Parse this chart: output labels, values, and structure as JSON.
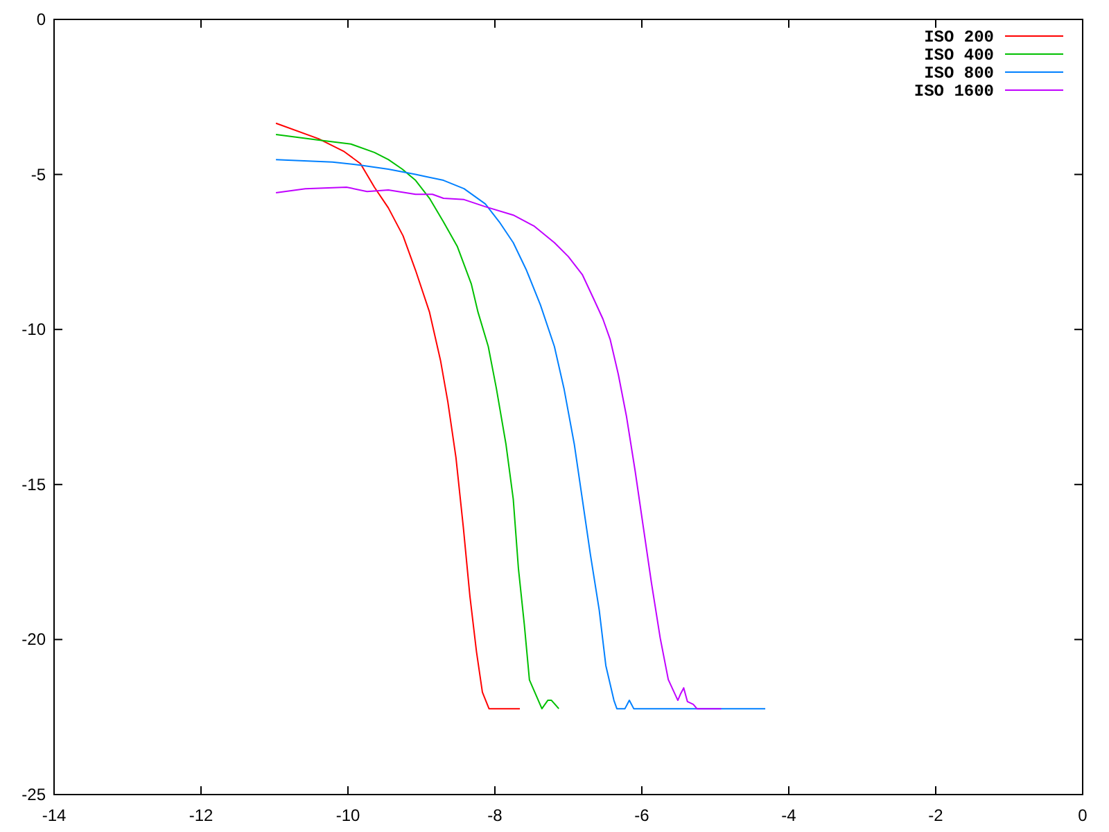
{
  "chart_data": {
    "type": "line",
    "xlim": [
      -14,
      0
    ],
    "ylim": [
      -25,
      0
    ],
    "xticks": [
      -14,
      -12,
      -10,
      -8,
      -6,
      -4,
      -2,
      0
    ],
    "yticks": [
      -25,
      -20,
      -15,
      -10,
      -5,
      0
    ],
    "legend": "top right",
    "grid": false,
    "series": [
      {
        "name": "ISO 200",
        "color": "#ff0000",
        "x": [
          -10.98,
          -10.4,
          -10.06,
          -9.83,
          -9.64,
          -9.45,
          -9.25,
          -9.08,
          -8.89,
          -8.74,
          -8.64,
          -8.53,
          -8.43,
          -8.34,
          -8.25,
          -8.17,
          -8.08,
          -7.66
        ],
        "values": [
          -3.35,
          -3.85,
          -4.25,
          -4.65,
          -5.41,
          -6.08,
          -6.98,
          -8.09,
          -9.44,
          -11.0,
          -12.34,
          -14.13,
          -16.37,
          -18.6,
          -20.4,
          -21.7,
          -22.23,
          -22.23
        ]
      },
      {
        "name": "ISO 400",
        "color": "#00c000",
        "x": [
          -10.98,
          -10.4,
          -9.96,
          -9.64,
          -9.45,
          -9.26,
          -9.08,
          -8.89,
          -8.7,
          -8.51,
          -8.32,
          -8.23,
          -8.09,
          -7.98,
          -7.85,
          -7.75,
          -7.68,
          -7.6,
          -7.53,
          -7.36,
          -7.28,
          -7.23,
          -7.13
        ],
        "values": [
          -3.71,
          -3.89,
          -4.02,
          -4.29,
          -4.52,
          -4.83,
          -5.19,
          -5.77,
          -6.53,
          -7.33,
          -8.54,
          -9.44,
          -10.55,
          -11.9,
          -13.69,
          -15.47,
          -17.7,
          -19.5,
          -21.3,
          -22.23,
          -21.96,
          -21.96,
          -22.23
        ]
      },
      {
        "name": "ISO 800",
        "color": "#0080ff",
        "x": [
          -10.98,
          -10.21,
          -9.83,
          -9.45,
          -9.08,
          -8.7,
          -8.42,
          -8.13,
          -7.94,
          -7.75,
          -7.57,
          -7.38,
          -7.19,
          -7.06,
          -6.92,
          -6.81,
          -6.7,
          -6.58,
          -6.49,
          -6.38,
          -6.34,
          -6.23,
          -6.17,
          -6.11,
          -4.32
        ],
        "values": [
          -4.52,
          -4.6,
          -4.7,
          -4.83,
          -5.0,
          -5.19,
          -5.46,
          -5.95,
          -6.53,
          -7.2,
          -8.09,
          -9.21,
          -10.55,
          -11.9,
          -13.69,
          -15.47,
          -17.26,
          -19.05,
          -20.84,
          -21.96,
          -22.23,
          -22.23,
          -21.96,
          -22.23,
          -22.23
        ]
      },
      {
        "name": "ISO 1600",
        "color": "#c000ff",
        "x": [
          -10.98,
          -10.58,
          -10.02,
          -9.74,
          -9.45,
          -9.08,
          -8.85,
          -8.7,
          -8.42,
          -8.13,
          -7.75,
          -7.47,
          -7.19,
          -7.0,
          -6.81,
          -6.66,
          -6.53,
          -6.43,
          -6.32,
          -6.21,
          -6.09,
          -5.98,
          -5.87,
          -5.75,
          -5.64,
          -5.51,
          -5.47,
          -5.43,
          -5.38,
          -5.3,
          -5.25,
          -4.92
        ],
        "values": [
          -5.59,
          -5.46,
          -5.41,
          -5.55,
          -5.5,
          -5.64,
          -5.64,
          -5.77,
          -5.81,
          -6.04,
          -6.31,
          -6.66,
          -7.2,
          -7.65,
          -8.23,
          -8.99,
          -9.66,
          -10.33,
          -11.45,
          -12.79,
          -14.58,
          -16.37,
          -18.16,
          -19.95,
          -21.29,
          -21.96,
          -21.74,
          -21.56,
          -22.0,
          -22.09,
          -22.23,
          -22.23
        ]
      }
    ]
  }
}
